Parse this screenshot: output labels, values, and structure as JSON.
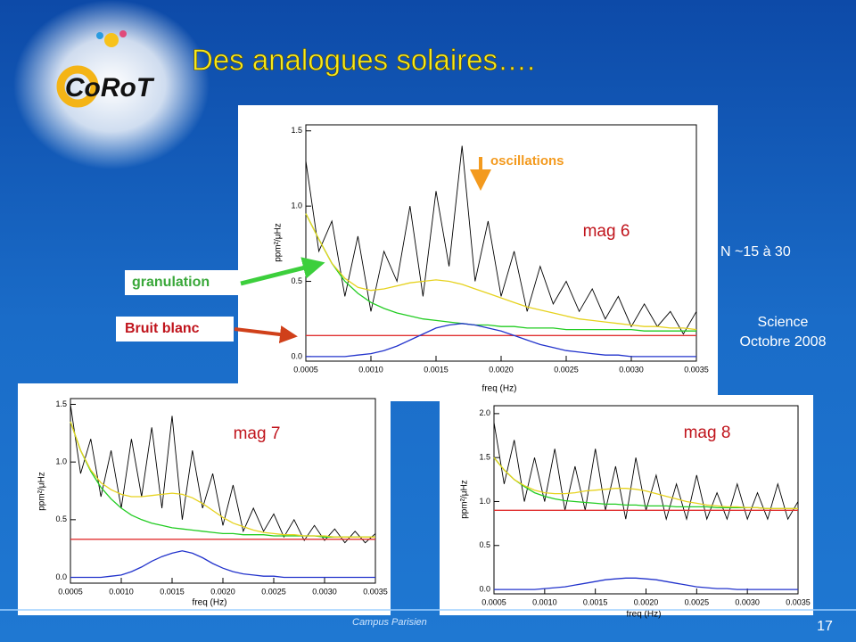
{
  "slide": {
    "logo": "CoRoT",
    "title": "Des analogues solaires….",
    "granulation": "granulation",
    "white_noise": "Bruit blanc",
    "n_range": "N ~15 à 30",
    "source_line1": "Science",
    "source_line2": "Octobre 2008",
    "footer": "Campus Parisien",
    "page": "17"
  },
  "chart_data": [
    {
      "type": "line",
      "x_label": "freq (Hz)",
      "y_label": "ppm²/μHz",
      "annotations": [
        {
          "text": "oscillations",
          "color": "#f39a1e"
        },
        {
          "text": "mag 6",
          "color": "#c0141c"
        }
      ],
      "xlim": [
        0.0005,
        0.0035
      ],
      "ylim": [
        -0.03,
        1.54
      ],
      "xticks": [
        {
          "value": 0.0005,
          "label": "0.0005"
        },
        {
          "value": 0.001,
          "label": "0.0010"
        },
        {
          "value": 0.0015,
          "label": "0.0015"
        },
        {
          "value": 0.002,
          "label": "0.0020"
        },
        {
          "value": 0.0025,
          "label": "0.0025"
        },
        {
          "value": 0.003,
          "label": "0.0030"
        },
        {
          "value": 0.0035,
          "label": "0.0035"
        }
      ],
      "yticks": [
        {
          "value": 0,
          "label": "0.0"
        },
        0.5,
        {
          "value": 1,
          "label": "1.0"
        },
        {
          "value": 1.5,
          "label": "1.5"
        }
      ],
      "x": [
        0.0005,
        0.0006,
        0.0007,
        0.0008,
        0.0009,
        0.001,
        0.0011,
        0.0012,
        0.0013,
        0.0014,
        0.0015,
        0.0016,
        0.0017,
        0.0018,
        0.0019,
        0.002,
        0.0021,
        0.0022,
        0.0023,
        0.0024,
        0.0025,
        0.0026,
        0.0027,
        0.0028,
        0.0029,
        0.003,
        0.0031,
        0.0032,
        0.0033,
        0.0034,
        0.0035
      ],
      "series": [
        {
          "color": "#000000",
          "values": [
            1.3,
            0.7,
            0.9,
            0.4,
            0.8,
            0.3,
            0.7,
            0.5,
            1.0,
            0.4,
            1.1,
            0.6,
            1.4,
            0.5,
            0.9,
            0.4,
            0.7,
            0.3,
            0.6,
            0.35,
            0.5,
            0.3,
            0.45,
            0.25,
            0.4,
            0.2,
            0.35,
            0.2,
            0.3,
            0.15,
            0.3
          ]
        },
        {
          "color": "#22cc22",
          "values": [
            0.95,
            0.78,
            0.62,
            0.5,
            0.42,
            0.36,
            0.32,
            0.29,
            0.27,
            0.25,
            0.24,
            0.23,
            0.22,
            0.21,
            0.21,
            0.2,
            0.2,
            0.19,
            0.19,
            0.19,
            0.18,
            0.18,
            0.18,
            0.18,
            0.18,
            0.18,
            0.17,
            0.17,
            0.17,
            0.17,
            0.17
          ]
        },
        {
          "color": "#e6d21e",
          "values": [
            0.95,
            0.78,
            0.62,
            0.52,
            0.46,
            0.44,
            0.45,
            0.47,
            0.49,
            0.5,
            0.51,
            0.5,
            0.48,
            0.45,
            0.42,
            0.39,
            0.36,
            0.33,
            0.31,
            0.29,
            0.27,
            0.25,
            0.24,
            0.23,
            0.22,
            0.21,
            0.2,
            0.2,
            0.19,
            0.19,
            0.18
          ]
        },
        {
          "color": "#e03030",
          "values": [
            0.14,
            0.14,
            0.14,
            0.14,
            0.14,
            0.14,
            0.14,
            0.14,
            0.14,
            0.14,
            0.14,
            0.14,
            0.14,
            0.14,
            0.14,
            0.14,
            0.14,
            0.14,
            0.14,
            0.14,
            0.14,
            0.14,
            0.14,
            0.14,
            0.14,
            0.14,
            0.14,
            0.14,
            0.14,
            0.14,
            0.14
          ]
        },
        {
          "color": "#2233cc",
          "values": [
            0,
            0,
            0,
            0,
            0.01,
            0.02,
            0.04,
            0.07,
            0.11,
            0.15,
            0.19,
            0.21,
            0.22,
            0.21,
            0.19,
            0.17,
            0.14,
            0.11,
            0.08,
            0.06,
            0.04,
            0.03,
            0.02,
            0.01,
            0.01,
            0,
            0,
            0,
            0,
            0,
            0
          ]
        }
      ]
    },
    {
      "type": "line",
      "x_label": "freq (Hz)",
      "y_label": "ppm²/μHz",
      "annotations": [
        {
          "text": "mag 7",
          "color": "#c0141c"
        }
      ],
      "xlim": [
        0.0005,
        0.0035
      ],
      "ylim": [
        -0.05,
        1.55
      ],
      "xticks": [
        {
          "value": 0.0005,
          "label": "0.0005"
        },
        {
          "value": 0.001,
          "label": "0.0010"
        },
        {
          "value": 0.0015,
          "label": "0.0015"
        },
        {
          "value": 0.002,
          "label": "0.0020"
        },
        {
          "value": 0.0025,
          "label": "0.0025"
        },
        {
          "value": 0.003,
          "label": "0.0030"
        },
        {
          "value": 0.0035,
          "label": "0.0035"
        }
      ],
      "yticks": [
        {
          "value": 0,
          "label": "0.0"
        },
        0.5,
        {
          "value": 1,
          "label": "1.0"
        },
        {
          "value": 1.5,
          "label": "1.5"
        }
      ],
      "x": [
        0.0005,
        0.0006,
        0.0007,
        0.0008,
        0.0009,
        0.001,
        0.0011,
        0.0012,
        0.0013,
        0.0014,
        0.0015,
        0.0016,
        0.0017,
        0.0018,
        0.0019,
        0.002,
        0.0021,
        0.0022,
        0.0023,
        0.0024,
        0.0025,
        0.0026,
        0.0027,
        0.0028,
        0.0029,
        0.003,
        0.0031,
        0.0032,
        0.0033,
        0.0034,
        0.0035
      ],
      "series": [
        {
          "color": "#000000",
          "values": [
            1.5,
            0.9,
            1.2,
            0.7,
            1.1,
            0.6,
            1.2,
            0.7,
            1.3,
            0.6,
            1.4,
            0.5,
            1.1,
            0.6,
            0.9,
            0.45,
            0.8,
            0.4,
            0.6,
            0.4,
            0.55,
            0.35,
            0.5,
            0.32,
            0.45,
            0.32,
            0.42,
            0.3,
            0.4,
            0.3,
            0.38
          ]
        },
        {
          "color": "#22cc22",
          "values": [
            1.35,
            1.1,
            0.92,
            0.78,
            0.68,
            0.6,
            0.54,
            0.5,
            0.47,
            0.45,
            0.43,
            0.42,
            0.41,
            0.4,
            0.39,
            0.38,
            0.38,
            0.37,
            0.37,
            0.37,
            0.36,
            0.36,
            0.36,
            0.36,
            0.36,
            0.35,
            0.35,
            0.35,
            0.35,
            0.35,
            0.35
          ]
        },
        {
          "color": "#e6d21e",
          "values": [
            1.35,
            1.1,
            0.93,
            0.82,
            0.76,
            0.72,
            0.7,
            0.7,
            0.71,
            0.72,
            0.73,
            0.72,
            0.69,
            0.64,
            0.58,
            0.52,
            0.47,
            0.44,
            0.41,
            0.39,
            0.38,
            0.37,
            0.37,
            0.36,
            0.36,
            0.36,
            0.35,
            0.35,
            0.35,
            0.35,
            0.35
          ]
        },
        {
          "color": "#e03030",
          "values": [
            0.33,
            0.33,
            0.33,
            0.33,
            0.33,
            0.33,
            0.33,
            0.33,
            0.33,
            0.33,
            0.33,
            0.33,
            0.33,
            0.33,
            0.33,
            0.33,
            0.33,
            0.33,
            0.33,
            0.33,
            0.33,
            0.33,
            0.33,
            0.33,
            0.33,
            0.33,
            0.33,
            0.33,
            0.33,
            0.33,
            0.33
          ]
        },
        {
          "color": "#2233cc",
          "values": [
            0,
            0,
            0,
            0,
            0.01,
            0.02,
            0.05,
            0.09,
            0.14,
            0.18,
            0.21,
            0.23,
            0.21,
            0.17,
            0.12,
            0.08,
            0.05,
            0.03,
            0.02,
            0.01,
            0.01,
            0,
            0,
            0,
            0,
            0,
            0,
            0,
            0,
            0,
            0
          ]
        }
      ]
    },
    {
      "type": "line",
      "x_label": "freq (Hz)",
      "y_label": "ppm²/μHz",
      "annotations": [
        {
          "text": "mag 8",
          "color": "#c0141c"
        }
      ],
      "xlim": [
        0.0005,
        0.0035
      ],
      "ylim": [
        -0.05,
        2.09
      ],
      "xticks": [
        {
          "value": 0.0005,
          "label": "0.0005"
        },
        {
          "value": 0.001,
          "label": "0.0010"
        },
        {
          "value": 0.0015,
          "label": "0.0015"
        },
        {
          "value": 0.002,
          "label": "0.0020"
        },
        {
          "value": 0.0025,
          "label": "0.0025"
        },
        {
          "value": 0.003,
          "label": "0.0030"
        },
        {
          "value": 0.0035,
          "label": "0.0035"
        }
      ],
      "yticks": [
        {
          "value": 0,
          "label": "0.0"
        },
        0.5,
        {
          "value": 1,
          "label": "1.0"
        },
        {
          "value": 1.5,
          "label": "1.5"
        },
        {
          "value": 2,
          "label": "2.0"
        }
      ],
      "x": [
        0.0005,
        0.0006,
        0.0007,
        0.0008,
        0.0009,
        0.001,
        0.0011,
        0.0012,
        0.0013,
        0.0014,
        0.0015,
        0.0016,
        0.0017,
        0.0018,
        0.0019,
        0.002,
        0.0021,
        0.0022,
        0.0023,
        0.0024,
        0.0025,
        0.0026,
        0.0027,
        0.0028,
        0.0029,
        0.003,
        0.0031,
        0.0032,
        0.0033,
        0.0034,
        0.0035
      ],
      "series": [
        {
          "color": "#000000",
          "values": [
            1.9,
            1.2,
            1.7,
            1.0,
            1.5,
            1.0,
            1.6,
            0.9,
            1.4,
            0.9,
            1.6,
            0.9,
            1.4,
            0.8,
            1.5,
            0.9,
            1.3,
            0.8,
            1.2,
            0.8,
            1.3,
            0.8,
            1.1,
            0.8,
            1.2,
            0.8,
            1.1,
            0.8,
            1.2,
            0.8,
            1.0
          ]
        },
        {
          "color": "#22cc22",
          "values": [
            1.5,
            1.36,
            1.25,
            1.17,
            1.1,
            1.06,
            1.03,
            1.01,
            1.0,
            0.99,
            0.98,
            0.97,
            0.97,
            0.96,
            0.96,
            0.95,
            0.95,
            0.95,
            0.94,
            0.94,
            0.94,
            0.94,
            0.93,
            0.93,
            0.93,
            0.93,
            0.93,
            0.92,
            0.92,
            0.92,
            0.92
          ]
        },
        {
          "color": "#e6d21e",
          "values": [
            1.5,
            1.36,
            1.25,
            1.18,
            1.13,
            1.1,
            1.09,
            1.09,
            1.1,
            1.12,
            1.13,
            1.14,
            1.15,
            1.15,
            1.14,
            1.12,
            1.09,
            1.06,
            1.03,
            1.0,
            0.98,
            0.96,
            0.95,
            0.94,
            0.94,
            0.93,
            0.93,
            0.92,
            0.92,
            0.92,
            0.92
          ]
        },
        {
          "color": "#e03030",
          "values": [
            0.9,
            0.9,
            0.9,
            0.9,
            0.9,
            0.9,
            0.9,
            0.9,
            0.9,
            0.9,
            0.9,
            0.9,
            0.9,
            0.9,
            0.9,
            0.9,
            0.9,
            0.9,
            0.9,
            0.9,
            0.9,
            0.9,
            0.9,
            0.9,
            0.9,
            0.9,
            0.9,
            0.9,
            0.9,
            0.9,
            0.9
          ]
        },
        {
          "color": "#2233cc",
          "values": [
            0,
            0,
            0,
            0,
            0,
            0.01,
            0.02,
            0.03,
            0.05,
            0.07,
            0.09,
            0.11,
            0.12,
            0.13,
            0.13,
            0.12,
            0.11,
            0.09,
            0.07,
            0.05,
            0.03,
            0.02,
            0.01,
            0.01,
            0,
            0,
            0,
            0,
            0,
            0,
            0
          ]
        }
      ]
    }
  ]
}
